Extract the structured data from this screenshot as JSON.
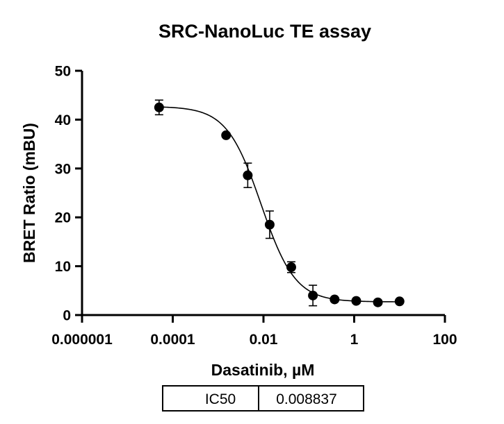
{
  "chart_data": {
    "type": "scatter",
    "title": "SRC-NanoLuc TE assay",
    "xlabel": "Dasatinib, µM",
    "ylabel": "BRET Ratio (mBU)",
    "x_scale": "log",
    "xlim": [
      1e-06,
      100
    ],
    "ylim": [
      0,
      50
    ],
    "x_ticks": [
      1e-06,
      0.0001,
      0.01,
      1,
      100
    ],
    "x_tick_labels": [
      "0.000001",
      "0.0001",
      "0.01",
      "1",
      "100"
    ],
    "y_ticks": [
      0,
      10,
      20,
      30,
      40,
      50
    ],
    "y_tick_labels": [
      "0",
      "10",
      "20",
      "30",
      "40",
      "50"
    ],
    "grid": false,
    "points": [
      {
        "x": 5e-05,
        "y": 42.5,
        "err": 1.5
      },
      {
        "x": 0.0015,
        "y": 36.8,
        "err": 0.4
      },
      {
        "x": 0.0045,
        "y": 28.6,
        "err": 2.5
      },
      {
        "x": 0.0137,
        "y": 18.5,
        "err": 2.8
      },
      {
        "x": 0.041,
        "y": 9.8,
        "err": 1.1
      },
      {
        "x": 0.123,
        "y": 4.0,
        "err": 2.1
      },
      {
        "x": 0.37,
        "y": 3.2,
        "err": 0.3
      },
      {
        "x": 1.11,
        "y": 2.9,
        "err": 0.3
      },
      {
        "x": 3.33,
        "y": 2.6,
        "err": 0.3
      },
      {
        "x": 10,
        "y": 2.8,
        "err": 0.3
      }
    ],
    "fit": {
      "model": "four-parameter logistic",
      "top": 42.7,
      "bottom": 2.7,
      "ic50": 0.008837,
      "hill": 1.15
    },
    "results_table": {
      "label": "IC50",
      "value": "0.008837"
    }
  }
}
